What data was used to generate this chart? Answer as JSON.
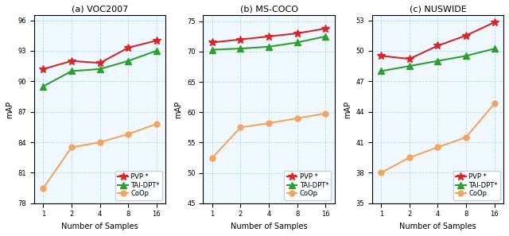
{
  "x_vals": [
    1,
    2,
    4,
    8,
    16
  ],
  "plots": [
    {
      "title": "(a) VOC2007",
      "ylabel": "mAP",
      "xlabel": "Number of Samples",
      "ylim": [
        78,
        96.5
      ],
      "yticks": [
        78,
        81,
        84,
        87,
        90,
        93,
        96
      ],
      "series": [
        {
          "label": "PVP *",
          "color": "#d62728",
          "marker": "*",
          "markersize": 7,
          "linewidth": 1.5,
          "values": [
            91.2,
            92.0,
            91.8,
            93.3,
            94.0
          ]
        },
        {
          "label": "TAI-DPT*",
          "color": "#2ca02c",
          "marker": "^",
          "markersize": 6,
          "linewidth": 1.5,
          "values": [
            89.5,
            91.0,
            91.2,
            92.0,
            93.0
          ]
        },
        {
          "label": "CoOp",
          "color": "#f4a460",
          "marker": "o",
          "markersize": 5,
          "linewidth": 1.5,
          "values": [
            79.5,
            83.5,
            84.0,
            84.8,
            85.8
          ]
        }
      ]
    },
    {
      "title": "(b) MS-COCO",
      "ylabel": "mAP",
      "xlabel": "Number of Samples",
      "ylim": [
        45,
        76
      ],
      "yticks": [
        45,
        50,
        55,
        60,
        65,
        70,
        75
      ],
      "series": [
        {
          "label": "PVP *",
          "color": "#d62728",
          "marker": "*",
          "markersize": 7,
          "linewidth": 1.5,
          "values": [
            71.5,
            72.0,
            72.5,
            73.0,
            73.8
          ]
        },
        {
          "label": "TAI-DPT*",
          "color": "#2ca02c",
          "marker": "^",
          "markersize": 6,
          "linewidth": 1.5,
          "values": [
            70.3,
            70.5,
            70.8,
            71.5,
            72.5
          ]
        },
        {
          "label": "CoOp",
          "color": "#f4a460",
          "marker": "o",
          "markersize": 5,
          "linewidth": 1.5,
          "values": [
            52.5,
            57.5,
            58.2,
            59.0,
            59.8
          ]
        }
      ]
    },
    {
      "title": "(c) NUSWIDE",
      "ylabel": "mAP",
      "xlabel": "Number of Samples",
      "ylim": [
        35,
        53.5
      ],
      "yticks": [
        35,
        38,
        41,
        44,
        47,
        50,
        53
      ],
      "series": [
        {
          "label": "PVP *",
          "color": "#d62728",
          "marker": "*",
          "markersize": 7,
          "linewidth": 1.5,
          "values": [
            49.5,
            49.2,
            50.5,
            51.5,
            52.8
          ]
        },
        {
          "label": "TAI-DPT*",
          "color": "#2ca02c",
          "marker": "^",
          "markersize": 6,
          "linewidth": 1.5,
          "values": [
            48.0,
            48.5,
            49.0,
            49.5,
            50.2
          ]
        },
        {
          "label": "CoOp",
          "color": "#f4a460",
          "marker": "o",
          "markersize": 5,
          "linewidth": 1.5,
          "values": [
            38.0,
            39.5,
            40.5,
            41.5,
            44.8
          ]
        }
      ]
    }
  ],
  "legend_fontsize": 6,
  "axis_fontsize": 7,
  "title_fontsize": 8,
  "tick_fontsize": 6,
  "bg_color": "#f0f8ff",
  "grid_color": "#b0d0f0"
}
